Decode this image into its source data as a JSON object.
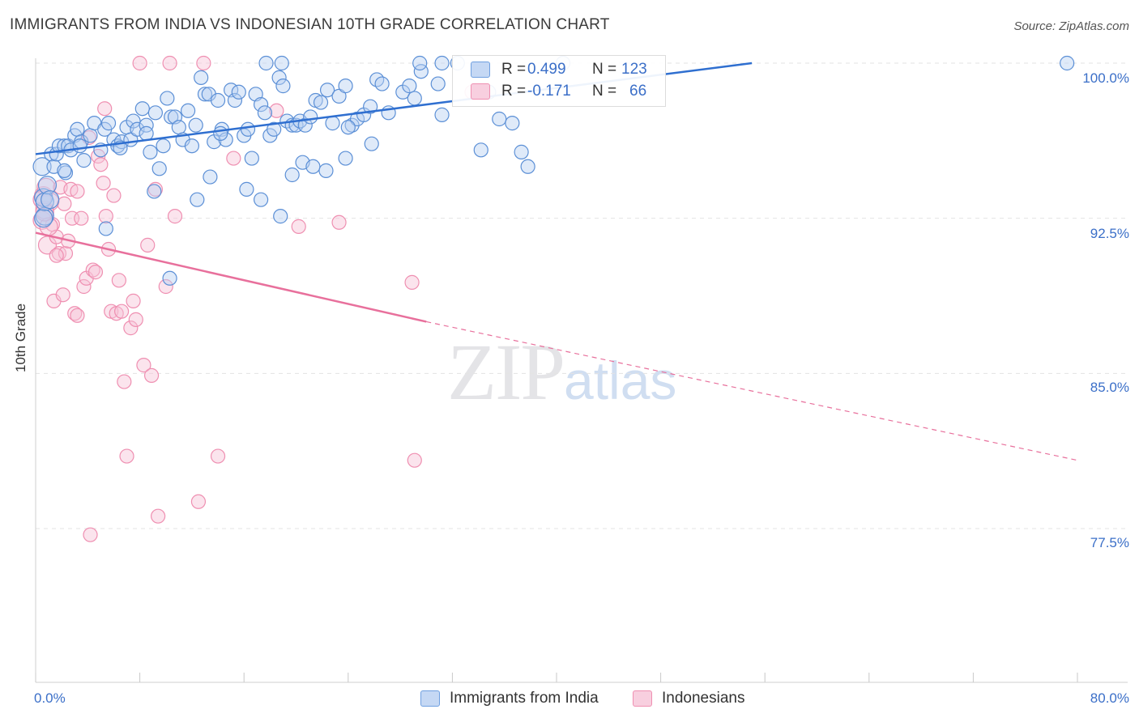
{
  "header": {
    "title": "IMMIGRANTS FROM INDIA VS INDONESIAN 10TH GRADE CORRELATION CHART",
    "source": "Source: ZipAtlas.com"
  },
  "watermark": {
    "zip": "ZIP",
    "atlas": "atlas"
  },
  "stats_legend": {
    "rows": [
      {
        "r_label": "R =",
        "r_value": "0.499",
        "n_label": "N =",
        "n_value": "123",
        "color": "#6f9fe0"
      },
      {
        "r_label": "R =",
        "r_value": "-0.171",
        "n_label": "N =",
        "n_value": "66",
        "color": "#ef8fb1"
      }
    ]
  },
  "bottom_legend": {
    "items": [
      {
        "label": "Immigrants from India",
        "color": "#6f9fe0"
      },
      {
        "label": "Indonesians",
        "color": "#ef8fb1"
      }
    ]
  },
  "axes": {
    "ylabel": "10th Grade",
    "yticks": [
      "100.0%",
      "92.5%",
      "85.0%",
      "77.5%"
    ],
    "xticks": [
      "0.0%",
      "80.0%"
    ]
  },
  "chart_data": {
    "type": "scatter",
    "xlim": [
      0,
      80
    ],
    "ylim": [
      70,
      100.5
    ],
    "ylabel": "10th Grade",
    "series": [
      {
        "name": "Immigrants from India",
        "color": "#6f9fe0",
        "trend": {
          "x0": 0,
          "y0": 95.6,
          "x1": 55,
          "y1": 100.0
        },
        "points": [
          [
            0.5,
            95
          ],
          [
            0.6,
            93.5
          ],
          [
            0.7,
            92.6
          ],
          [
            1.2,
            95.6
          ],
          [
            1.4,
            95
          ],
          [
            1.6,
            95.6
          ],
          [
            1.8,
            96
          ],
          [
            2.2,
            96
          ],
          [
            2.3,
            94.7
          ],
          [
            2.5,
            96
          ],
          [
            2.7,
            95.8
          ],
          [
            3.0,
            96.5
          ],
          [
            3.2,
            96.8
          ],
          [
            3.5,
            96.2
          ],
          [
            3.7,
            95.3
          ],
          [
            4.2,
            96.5
          ],
          [
            4.5,
            97.1
          ],
          [
            5.0,
            95.8
          ],
          [
            5.3,
            96.8
          ],
          [
            5.6,
            97.1
          ],
          [
            6.0,
            96.3
          ],
          [
            6.3,
            96
          ],
          [
            6.6,
            96.2
          ],
          [
            7.0,
            96.9
          ],
          [
            7.3,
            96.3
          ],
          [
            7.5,
            97.2
          ],
          [
            7.8,
            96.8
          ],
          [
            8.2,
            97.8
          ],
          [
            8.5,
            97
          ],
          [
            8.8,
            95.7
          ],
          [
            9.2,
            97.6
          ],
          [
            9.5,
            94.9
          ],
          [
            9.8,
            96
          ],
          [
            10.1,
            98.3
          ],
          [
            10.4,
            97.4
          ],
          [
            10.7,
            97.4
          ],
          [
            11.0,
            96.9
          ],
          [
            11.3,
            96.3
          ],
          [
            11.7,
            97.7
          ],
          [
            12.0,
            96
          ],
          [
            12.3,
            97
          ],
          [
            12.7,
            99.3
          ],
          [
            13.0,
            98.5
          ],
          [
            13.3,
            98.5
          ],
          [
            13.7,
            96.2
          ],
          [
            14.0,
            98.2
          ],
          [
            14.3,
            96.8
          ],
          [
            14.6,
            96.3
          ],
          [
            15.0,
            98.7
          ],
          [
            15.3,
            98.2
          ],
          [
            15.6,
            98.6
          ],
          [
            16.0,
            96.5
          ],
          [
            16.3,
            96.8
          ],
          [
            16.6,
            95.4
          ],
          [
            16.9,
            98.5
          ],
          [
            17.3,
            98
          ],
          [
            17.6,
            97.6
          ],
          [
            18.0,
            96.5
          ],
          [
            18.3,
            96.8
          ],
          [
            18.7,
            99.3
          ],
          [
            19.0,
            98.9
          ],
          [
            19.3,
            97.2
          ],
          [
            19.7,
            97
          ],
          [
            20.0,
            97
          ],
          [
            20.3,
            97.2
          ],
          [
            20.7,
            97
          ],
          [
            21.1,
            97.4
          ],
          [
            21.5,
            98.2
          ],
          [
            21.9,
            98.1
          ],
          [
            22.4,
            98.7
          ],
          [
            22.8,
            97.1
          ],
          [
            23.3,
            98.4
          ],
          [
            23.8,
            98.9
          ],
          [
            24.3,
            97
          ],
          [
            24.7,
            97.3
          ],
          [
            25.2,
            97.5
          ],
          [
            25.7,
            97.9
          ],
          [
            26.2,
            99.2
          ],
          [
            26.6,
            99
          ],
          [
            28.2,
            98.6
          ],
          [
            28.7,
            98.9
          ],
          [
            29.6,
            99.6
          ],
          [
            31.2,
            97.5
          ],
          [
            32.4,
            100
          ],
          [
            34.8,
            98.6
          ],
          [
            34.2,
            95.8
          ],
          [
            35.6,
            97.3
          ],
          [
            36.6,
            97.1
          ],
          [
            37.3,
            95.7
          ],
          [
            37.8,
            95
          ],
          [
            2.2,
            94.8
          ],
          [
            12.4,
            93.4
          ],
          [
            13.4,
            94.5
          ],
          [
            16.2,
            93.9
          ],
          [
            17.3,
            93.4
          ],
          [
            18.8,
            92.6
          ],
          [
            9.1,
            93.8
          ],
          [
            5.4,
            92
          ],
          [
            20.5,
            95.2
          ],
          [
            22.3,
            94.8
          ],
          [
            10.3,
            89.6
          ],
          [
            17.7,
            100
          ],
          [
            18.9,
            100
          ],
          [
            29.5,
            100
          ],
          [
            31.2,
            100
          ],
          [
            40.5,
            100
          ],
          [
            79.2,
            100
          ],
          [
            30.9,
            99
          ],
          [
            29.1,
            98.3
          ],
          [
            27.1,
            97.6
          ],
          [
            24.0,
            96.9
          ],
          [
            25.8,
            96.1
          ],
          [
            23.8,
            95.4
          ],
          [
            21.3,
            95.0
          ],
          [
            19.7,
            94.6
          ],
          [
            0.6,
            92.5
          ],
          [
            0.7,
            93.3
          ],
          [
            0.9,
            94.1
          ],
          [
            1.1,
            93.4
          ],
          [
            3.4,
            96.0
          ],
          [
            6.5,
            95.9
          ],
          [
            8.5,
            96.6
          ],
          [
            14.2,
            96.6
          ]
        ]
      },
      {
        "name": "Indonesians",
        "color": "#ef8fb1",
        "trend": {
          "x0": 0,
          "y0": 91.8,
          "x1": 30,
          "y1": 87.5,
          "x2": 80,
          "y2": 80.8
        },
        "points": [
          [
            0.5,
            92.4
          ],
          [
            0.6,
            93.6
          ],
          [
            0.7,
            92.9
          ],
          [
            0.8,
            94
          ],
          [
            0.9,
            91.2
          ],
          [
            1.1,
            93.3
          ],
          [
            1.3,
            92.2
          ],
          [
            1.4,
            88.5
          ],
          [
            1.6,
            91.6
          ],
          [
            1.8,
            90.8
          ],
          [
            1.9,
            94
          ],
          [
            2.1,
            88.8
          ],
          [
            2.3,
            90.8
          ],
          [
            2.5,
            91.4
          ],
          [
            2.7,
            93.9
          ],
          [
            2.8,
            92.5
          ],
          [
            3.0,
            87.9
          ],
          [
            3.2,
            87.8
          ],
          [
            3.5,
            92.5
          ],
          [
            3.7,
            89.2
          ],
          [
            3.9,
            89.6
          ],
          [
            4.1,
            96.4
          ],
          [
            4.4,
            90
          ],
          [
            4.6,
            89.9
          ],
          [
            4.8,
            95.5
          ],
          [
            5.0,
            95.1
          ],
          [
            5.2,
            94.2
          ],
          [
            5.4,
            92.6
          ],
          [
            5.6,
            91
          ],
          [
            5.8,
            88
          ],
          [
            6.0,
            93.6
          ],
          [
            6.2,
            87.9
          ],
          [
            6.4,
            89.5
          ],
          [
            6.6,
            88
          ],
          [
            6.8,
            84.6
          ],
          [
            7.0,
            81
          ],
          [
            7.3,
            87.2
          ],
          [
            7.5,
            88.5
          ],
          [
            7.7,
            87.6
          ],
          [
            8.0,
            100
          ],
          [
            8.3,
            85.4
          ],
          [
            8.6,
            91.2
          ],
          [
            8.9,
            84.9
          ],
          [
            9.2,
            93.9
          ],
          [
            9.4,
            78.1
          ],
          [
            10.0,
            89.2
          ],
          [
            10.3,
            100
          ],
          [
            10.7,
            92.6
          ],
          [
            12.5,
            78.8
          ],
          [
            12.9,
            100
          ],
          [
            14.0,
            81
          ],
          [
            15.2,
            95.4
          ],
          [
            18.5,
            97.7
          ],
          [
            20.2,
            92.1
          ],
          [
            23.3,
            92.3
          ],
          [
            28.9,
            89.4
          ],
          [
            29.1,
            80.8
          ],
          [
            33.5,
            98.6
          ],
          [
            5.3,
            97.8
          ],
          [
            4.2,
            77.2
          ],
          [
            1.0,
            92.1
          ],
          [
            0.7,
            92.8
          ],
          [
            0.5,
            93.4
          ],
          [
            2.2,
            93.2
          ],
          [
            3.2,
            93.8
          ],
          [
            1.6,
            90.7
          ]
        ]
      }
    ]
  }
}
